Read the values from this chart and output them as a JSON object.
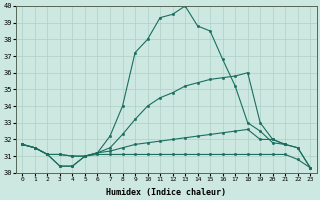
{
  "title": "",
  "xlabel": "Humidex (Indice chaleur)",
  "bg_color": "#cde8e0",
  "grid_color": "#aecfc7",
  "line_color": "#1a6e60",
  "xlim": [
    -0.5,
    23.5
  ],
  "ylim": [
    30,
    40
  ],
  "yticks": [
    30,
    31,
    32,
    33,
    34,
    35,
    36,
    37,
    38,
    39,
    40
  ],
  "xticks": [
    0,
    1,
    2,
    3,
    4,
    5,
    6,
    7,
    8,
    9,
    10,
    11,
    12,
    13,
    14,
    15,
    16,
    17,
    18,
    19,
    20,
    21,
    22,
    23
  ],
  "line_main_x": [
    0,
    1,
    2,
    3,
    4,
    5,
    6,
    7,
    8,
    9,
    10,
    11,
    12,
    13,
    14,
    15,
    16,
    17,
    18,
    19,
    20,
    21
  ],
  "line_main_y": [
    31.7,
    31.5,
    31.1,
    31.1,
    31.0,
    31.0,
    31.2,
    32.2,
    34.0,
    37.2,
    38.0,
    39.3,
    39.5,
    40.0,
    38.8,
    38.5,
    36.8,
    35.2,
    33.0,
    32.5,
    31.8,
    31.7
  ],
  "line_mid_x": [
    0,
    1,
    2,
    3,
    4,
    5,
    6,
    7,
    8,
    9,
    10,
    11,
    12,
    13,
    14,
    15,
    16,
    17,
    18,
    19,
    20,
    21,
    22,
    23
  ],
  "line_mid_y": [
    31.7,
    31.5,
    31.1,
    31.1,
    31.0,
    31.0,
    31.2,
    31.5,
    32.3,
    33.2,
    34.0,
    34.5,
    34.8,
    35.2,
    35.4,
    35.6,
    35.7,
    35.8,
    36.0,
    33.0,
    32.0,
    31.7,
    31.5,
    30.3
  ],
  "line_low1_x": [
    0,
    1,
    2,
    3,
    4,
    5,
    6,
    7,
    8,
    9,
    10,
    11,
    12,
    13,
    14,
    15,
    16,
    17,
    18,
    19,
    20,
    21,
    22,
    23
  ],
  "line_low1_y": [
    31.7,
    31.5,
    31.1,
    30.4,
    30.4,
    31.0,
    31.2,
    31.3,
    31.5,
    31.7,
    31.8,
    31.9,
    32.0,
    32.1,
    32.2,
    32.3,
    32.4,
    32.5,
    32.6,
    32.0,
    32.0,
    31.7,
    31.5,
    30.3
  ],
  "line_low2_x": [
    0,
    1,
    2,
    3,
    4,
    5,
    6,
    7,
    8,
    9,
    10,
    11,
    12,
    13,
    14,
    15,
    16,
    17,
    18,
    19,
    20,
    21,
    22,
    23
  ],
  "line_low2_y": [
    31.7,
    31.5,
    31.1,
    30.4,
    30.4,
    31.0,
    31.1,
    31.1,
    31.1,
    31.1,
    31.1,
    31.1,
    31.1,
    31.1,
    31.1,
    31.1,
    31.1,
    31.1,
    31.1,
    31.1,
    31.1,
    31.1,
    30.8,
    30.3
  ],
  "font_family": "monospace"
}
